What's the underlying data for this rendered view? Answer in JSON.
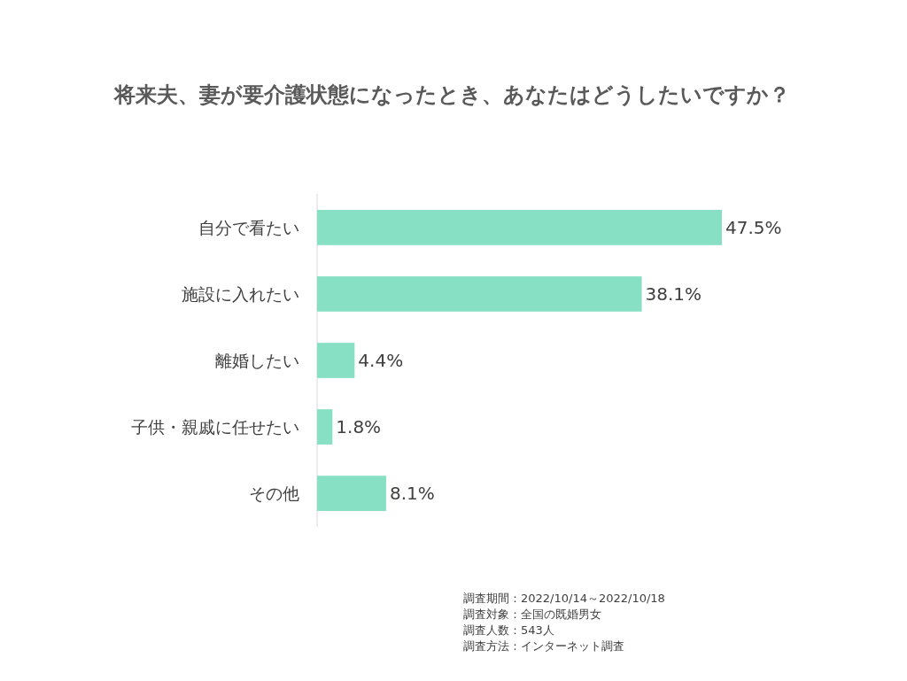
{
  "chart_data": {
    "type": "bar",
    "orientation": "horizontal",
    "title": "将来夫、妻が要介護状態になったとき、あなたはどうしたいですか？",
    "categories": [
      "自分で看たい",
      "施設に入れたい",
      "離婚したい",
      "子供・親戚に任せたい",
      "その他"
    ],
    "values": [
      47.5,
      38.1,
      4.4,
      1.8,
      8.1
    ],
    "value_labels": [
      "47.5%",
      "38.1%",
      "4.4%",
      "1.8%",
      "8.1%"
    ],
    "color": "#88e0c4",
    "annotations": [
      "調査期間：2022/10/14～2022/10/18",
      "調査対象：全国の既婚男女",
      "調査人数：543人",
      "調査方法：インターネット調査"
    ]
  }
}
